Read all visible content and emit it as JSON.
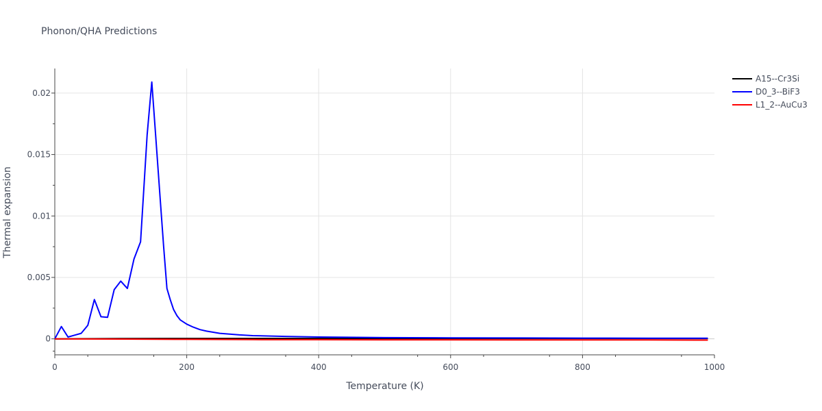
{
  "chart_data": {
    "type": "line",
    "title": "Phonon/QHA Predictions",
    "xlabel": "Temperature (K)",
    "ylabel": "Thermal expansion",
    "xlim": [
      0,
      1000
    ],
    "ylim": [
      -0.0013,
      0.022
    ],
    "x_ticks": [
      0,
      200,
      400,
      600,
      800,
      1000
    ],
    "x_tick_labels": [
      "0",
      "200",
      "400",
      "600",
      "800",
      "1000"
    ],
    "y_ticks": [
      0,
      0.005,
      0.01,
      0.015,
      0.02
    ],
    "y_tick_labels": [
      "0",
      "0.005",
      "0.01",
      "0.015",
      "0.02"
    ],
    "grid": true,
    "legend_position": "top-right",
    "series": [
      {
        "name": "A15--Cr3Si",
        "color": "#000000",
        "x": [
          0,
          100,
          200,
          300,
          400,
          500,
          600,
          700,
          800,
          900,
          990
        ],
        "y": [
          0,
          2e-05,
          3e-05,
          3e-05,
          3e-05,
          3e-05,
          3e-05,
          3e-05,
          3e-05,
          3e-05,
          3e-05
        ]
      },
      {
        "name": "D0_3--BiF3",
        "color": "#0000ff",
        "x": [
          0,
          10,
          20,
          30,
          40,
          50,
          60,
          70,
          80,
          90,
          100,
          110,
          120,
          130,
          140,
          147,
          153,
          160,
          165,
          170,
          175,
          180,
          185,
          190,
          200,
          210,
          220,
          230,
          250,
          280,
          300,
          350,
          400,
          500,
          600,
          700,
          800,
          900,
          990
        ],
        "y": [
          0,
          0.001,
          0.00015,
          0.0003,
          0.00045,
          0.0011,
          0.0032,
          0.0018,
          0.00175,
          0.004,
          0.0047,
          0.0041,
          0.0065,
          0.0079,
          0.0166,
          0.0209,
          0.0165,
          0.0112,
          0.0075,
          0.0041,
          0.0032,
          0.0024,
          0.0019,
          0.00155,
          0.0012,
          0.00095,
          0.00075,
          0.00063,
          0.00045,
          0.00032,
          0.00026,
          0.0002,
          0.00015,
          0.0001,
          8e-05,
          7e-05,
          6e-05,
          5e-05,
          5e-05
        ]
      },
      {
        "name": "L1_2--AuCu3",
        "color": "#ff0000",
        "x": [
          0,
          100,
          200,
          300,
          400,
          500,
          600,
          700,
          800,
          900,
          990
        ],
        "y": [
          0,
          -2e-05,
          -4e-05,
          -6e-05,
          -7e-05,
          -8e-05,
          -8e-05,
          -9e-05,
          -9e-05,
          -9e-05,
          -0.0001
        ]
      }
    ]
  }
}
